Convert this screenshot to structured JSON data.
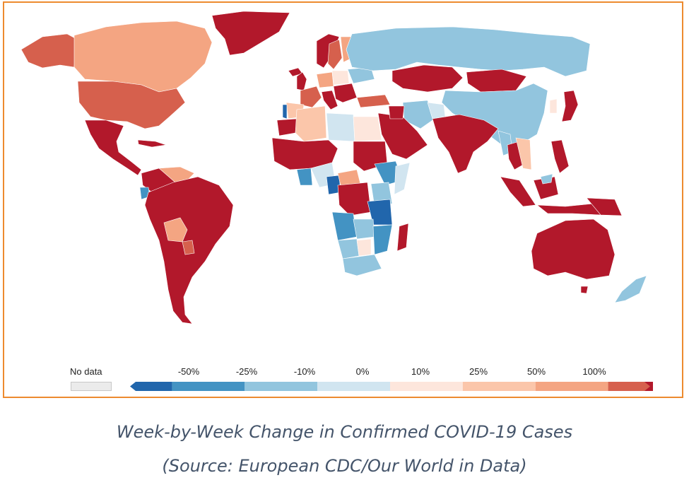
{
  "map": {
    "legend": {
      "no_data_label": "No data",
      "ticks": [
        "-50%",
        "-25%",
        "-10%",
        "0%",
        "10%",
        "25%",
        "50%",
        "100%"
      ],
      "bins": [
        {
          "color": "#2166ac"
        },
        {
          "color": "#4393c3"
        },
        {
          "color": "#92c5de"
        },
        {
          "color": "#d1e5f0"
        },
        {
          "color": "#fde6dc"
        },
        {
          "color": "#fbc6aa"
        },
        {
          "color": "#f4a582"
        },
        {
          "color": "#d6604d"
        },
        {
          "color": "#b2182b"
        }
      ],
      "no_data_color": "#ebebeb"
    }
  },
  "caption": {
    "line1": "Week-by-Week Change in Confirmed COVID-19 Cases",
    "line2": "(Source: European CDC/Our World in Data)"
  },
  "colors": {
    "frame": "#ed8b2f",
    "caption": "#44546a",
    "dark_red": "#b2182b",
    "red": "#d6604d",
    "salmon": "#f4a582",
    "peach": "#fbc6aa",
    "pale": "#fde6dc",
    "light_blue": "#d1e5f0",
    "sky": "#92c5de",
    "blue": "#4393c3",
    "dark_blue": "#2166ac"
  }
}
